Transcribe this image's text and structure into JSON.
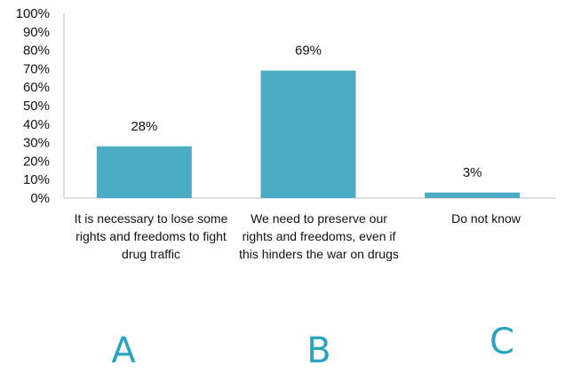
{
  "chart_data": {
    "type": "bar",
    "categories": [
      "It is necessary to lose some rights and freedoms to fight drug traffic",
      "We need to preserve our rights and freedoms, even if this hinders the war on drugs",
      "Do not know"
    ],
    "values": [
      28,
      69,
      3
    ],
    "value_labels": [
      "28%",
      "69%",
      "3%"
    ],
    "ylim": [
      0,
      100
    ],
    "yticks": [
      "0%",
      "10%",
      "20%",
      "30%",
      "40%",
      "50%",
      "60%",
      "70%",
      "80%",
      "90%",
      "100%"
    ],
    "bar_color": "#4bacc6",
    "grid": false,
    "legend": "none"
  },
  "letters": [
    "A",
    "B",
    "C"
  ],
  "letter_color": "#2aa3c0"
}
